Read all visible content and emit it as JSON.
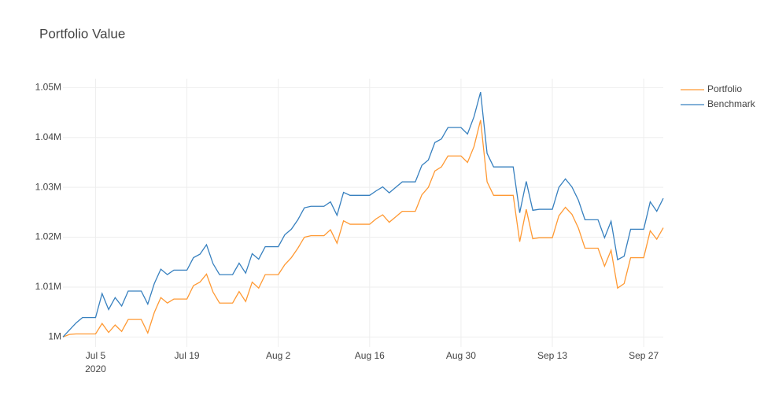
{
  "chart_data": {
    "type": "line",
    "title": "Portfolio Value",
    "x": [
      "2020-06-30",
      "2020-07-01",
      "2020-07-02",
      "2020-07-03",
      "2020-07-04",
      "2020-07-05",
      "2020-07-06",
      "2020-07-07",
      "2020-07-08",
      "2020-07-09",
      "2020-07-10",
      "2020-07-11",
      "2020-07-12",
      "2020-07-13",
      "2020-07-14",
      "2020-07-15",
      "2020-07-16",
      "2020-07-17",
      "2020-07-18",
      "2020-07-19",
      "2020-07-20",
      "2020-07-21",
      "2020-07-22",
      "2020-07-23",
      "2020-07-24",
      "2020-07-25",
      "2020-07-26",
      "2020-07-27",
      "2020-07-28",
      "2020-07-29",
      "2020-07-30",
      "2020-07-31",
      "2020-08-01",
      "2020-08-02",
      "2020-08-03",
      "2020-08-04",
      "2020-08-05",
      "2020-08-06",
      "2020-08-07",
      "2020-08-08",
      "2020-08-09",
      "2020-08-10",
      "2020-08-11",
      "2020-08-12",
      "2020-08-13",
      "2020-08-14",
      "2020-08-15",
      "2020-08-16",
      "2020-08-17",
      "2020-08-18",
      "2020-08-19",
      "2020-08-20",
      "2020-08-21",
      "2020-08-22",
      "2020-08-23",
      "2020-08-24",
      "2020-08-25",
      "2020-08-26",
      "2020-08-27",
      "2020-08-28",
      "2020-08-29",
      "2020-08-30",
      "2020-08-31",
      "2020-09-01",
      "2020-09-02",
      "2020-09-03",
      "2020-09-04",
      "2020-09-05",
      "2020-09-06",
      "2020-09-07",
      "2020-09-08",
      "2020-09-09",
      "2020-09-10",
      "2020-09-11",
      "2020-09-12",
      "2020-09-13",
      "2020-09-14",
      "2020-09-15",
      "2020-09-16",
      "2020-09-17",
      "2020-09-18",
      "2020-09-19",
      "2020-09-20",
      "2020-09-21",
      "2020-09-22",
      "2020-09-23",
      "2020-09-24",
      "2020-09-25",
      "2020-09-26",
      "2020-09-27",
      "2020-09-28",
      "2020-09-29",
      "2020-09-30"
    ],
    "series": [
      {
        "name": "Portfolio",
        "color": "#ff9933",
        "values": [
          1000000,
          1000500,
          1000600,
          1000600,
          1000600,
          1000600,
          1002700,
          1000900,
          1002400,
          1001100,
          1003500,
          1003500,
          1003500,
          1000800,
          1004900,
          1007900,
          1006800,
          1007600,
          1007600,
          1007600,
          1010300,
          1011000,
          1012600,
          1009000,
          1006800,
          1006800,
          1006800,
          1009100,
          1007100,
          1011000,
          1009800,
          1012500,
          1012500,
          1012500,
          1014500,
          1015900,
          1017800,
          1020000,
          1020300,
          1020300,
          1020300,
          1021500,
          1018800,
          1023300,
          1022600,
          1022600,
          1022600,
          1022600,
          1023700,
          1024500,
          1023000,
          1024100,
          1025200,
          1025200,
          1025200,
          1028500,
          1030000,
          1033300,
          1034100,
          1036300,
          1036300,
          1036300,
          1035000,
          1038200,
          1043500,
          1031100,
          1028400,
          1028400,
          1028400,
          1028400,
          1019100,
          1025600,
          1019700,
          1019900,
          1019900,
          1019900,
          1024300,
          1026000,
          1024600,
          1021800,
          1017800,
          1017800,
          1017800,
          1014200,
          1017400,
          1009800,
          1010700,
          1015900,
          1015900,
          1015900,
          1021300,
          1019600,
          1021900
        ]
      },
      {
        "name": "Benchmark",
        "color": "#3780bf",
        "values": [
          1000000,
          1001400,
          1002800,
          1003900,
          1003900,
          1003900,
          1008700,
          1005500,
          1007900,
          1006200,
          1009200,
          1009200,
          1009200,
          1006600,
          1010700,
          1013600,
          1012500,
          1013400,
          1013400,
          1013400,
          1015900,
          1016600,
          1018500,
          1014700,
          1012500,
          1012500,
          1012500,
          1014800,
          1012800,
          1016700,
          1015600,
          1018100,
          1018100,
          1018100,
          1020500,
          1021600,
          1023500,
          1025900,
          1026200,
          1026200,
          1026200,
          1027100,
          1024400,
          1029000,
          1028400,
          1028400,
          1028400,
          1028400,
          1029300,
          1030100,
          1028900,
          1030000,
          1031100,
          1031100,
          1031100,
          1034400,
          1035500,
          1039000,
          1039700,
          1042000,
          1042000,
          1042000,
          1040700,
          1044200,
          1049100,
          1036800,
          1034100,
          1034100,
          1034100,
          1034100,
          1024900,
          1031200,
          1025400,
          1025600,
          1025600,
          1025600,
          1030000,
          1031700,
          1030100,
          1027400,
          1023500,
          1023500,
          1023500,
          1019900,
          1023200,
          1015500,
          1016200,
          1021600,
          1021600,
          1021600,
          1027100,
          1025200,
          1027800
        ]
      }
    ],
    "xlim": [
      "2020-06-30",
      "2020-09-30"
    ],
    "xticks": [
      {
        "value": "2020-07-05",
        "label": "Jul 5"
      },
      {
        "value": "2020-07-19",
        "label": "Jul 19"
      },
      {
        "value": "2020-08-02",
        "label": "Aug 2"
      },
      {
        "value": "2020-08-16",
        "label": "Aug 16"
      },
      {
        "value": "2020-08-30",
        "label": "Aug 30"
      },
      {
        "value": "2020-09-13",
        "label": "Sep 13"
      },
      {
        "value": "2020-09-27",
        "label": "Sep 27"
      }
    ],
    "x_year_label": "2020",
    "ylim": [
      998000,
      1051800
    ],
    "yticks": [
      {
        "value": 1000000,
        "label": "1M"
      },
      {
        "value": 1010000,
        "label": "1.01M"
      },
      {
        "value": 1020000,
        "label": "1.02M"
      },
      {
        "value": 1030000,
        "label": "1.03M"
      },
      {
        "value": 1040000,
        "label": "1.04M"
      },
      {
        "value": 1050000,
        "label": "1.05M"
      }
    ],
    "grid": true,
    "legend": "top-right"
  }
}
